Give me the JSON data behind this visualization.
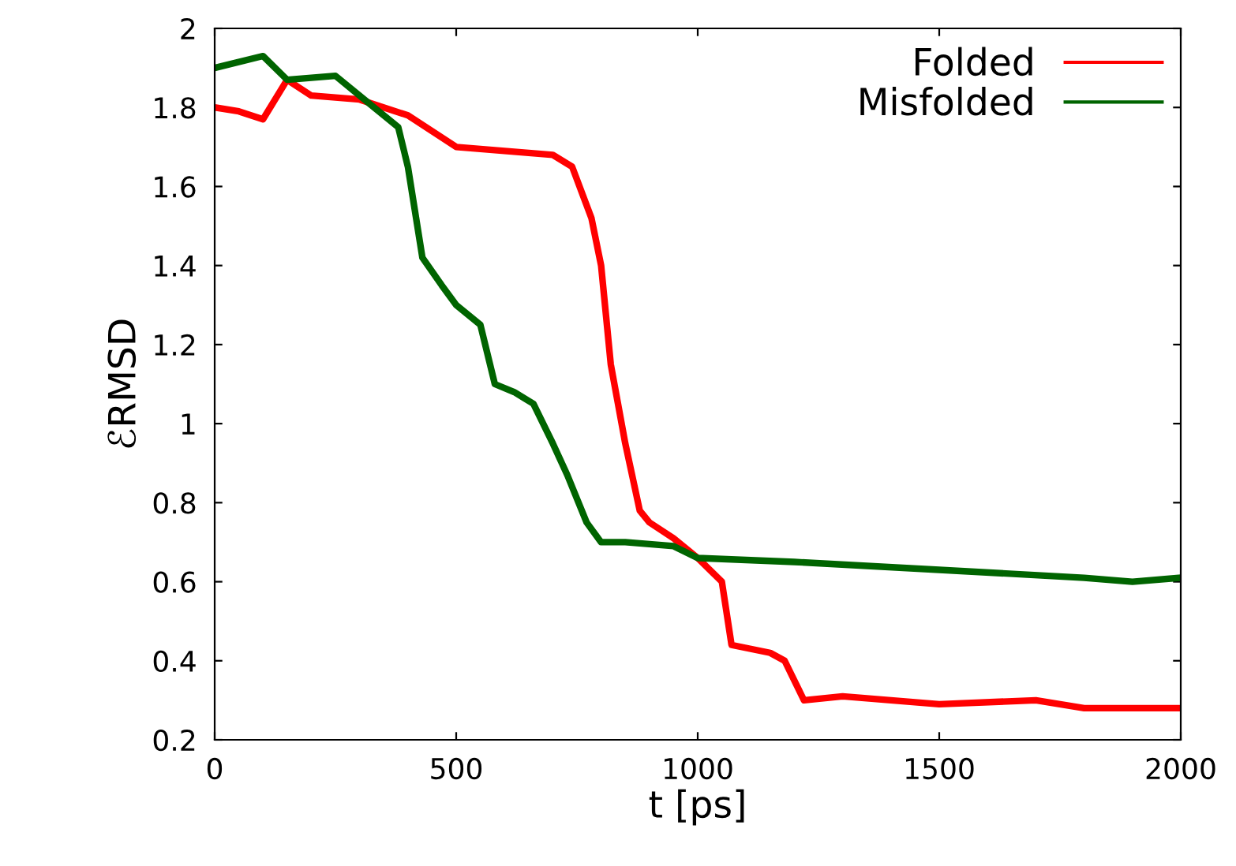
{
  "chart_data": {
    "type": "line",
    "xlabel": "t [ps]",
    "ylabel": "ℰRMSD",
    "xlim": [
      0,
      2000
    ],
    "ylim": [
      0.2,
      2
    ],
    "xticks": [
      0,
      500,
      1000,
      1500,
      2000
    ],
    "yticks": [
      0.2,
      0.4,
      0.6,
      0.8,
      1,
      1.2,
      1.4,
      1.6,
      1.8,
      2
    ],
    "grid": false,
    "legend": "top right",
    "line_style": "solid",
    "marker": "none",
    "series": [
      {
        "name": "Folded",
        "color": "#ff0000",
        "x": [
          0,
          50,
          100,
          150,
          200,
          300,
          400,
          500,
          600,
          700,
          740,
          780,
          800,
          820,
          850,
          880,
          900,
          950,
          1000,
          1050,
          1070,
          1150,
          1180,
          1220,
          1300,
          1500,
          1700,
          1800,
          2000
        ],
        "values": [
          1.8,
          1.79,
          1.77,
          1.87,
          1.83,
          1.82,
          1.78,
          1.7,
          1.69,
          1.68,
          1.65,
          1.52,
          1.4,
          1.15,
          0.95,
          0.78,
          0.75,
          0.71,
          0.66,
          0.6,
          0.44,
          0.42,
          0.4,
          0.3,
          0.31,
          0.29,
          0.3,
          0.28,
          0.28
        ]
      },
      {
        "name": "Misfolded",
        "color": "#006400",
        "x": [
          0,
          100,
          150,
          250,
          300,
          380,
          400,
          430,
          470,
          500,
          550,
          580,
          620,
          660,
          700,
          730,
          770,
          800,
          850,
          950,
          1000,
          1200,
          1500,
          1800,
          1900,
          2000
        ],
        "values": [
          1.9,
          1.93,
          1.87,
          1.88,
          1.83,
          1.75,
          1.65,
          1.42,
          1.35,
          1.3,
          1.25,
          1.1,
          1.08,
          1.05,
          0.95,
          0.87,
          0.75,
          0.7,
          0.7,
          0.69,
          0.66,
          0.65,
          0.63,
          0.61,
          0.6,
          0.61
        ]
      }
    ]
  }
}
